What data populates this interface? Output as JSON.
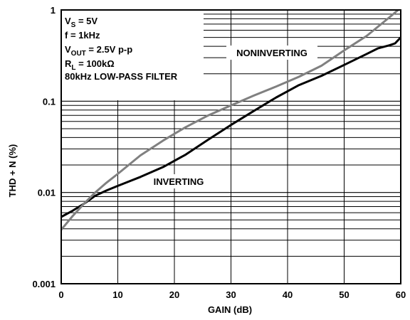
{
  "chart_data": {
    "type": "line",
    "xlabel": "GAIN (dB)",
    "ylabel": "THD + N (%)",
    "xlim": [
      0,
      60
    ],
    "ylim": [
      0.001,
      1
    ],
    "yscale": "log",
    "grid": true,
    "x_ticks": [
      "0",
      "10",
      "20",
      "30",
      "40",
      "50",
      "60"
    ],
    "y_ticks": [
      "0.001",
      "0.01",
      "0.1",
      "1"
    ],
    "conditions": {
      "vs_main": "V",
      "vs_sub": "S",
      "vs_rest": " = 5V",
      "freq": "f = 1kHz",
      "vout_main": "V",
      "vout_sub": "OUT",
      "vout_rest": " = 2.5V p-p",
      "rl_main": "R",
      "rl_sub": "L",
      "rl_rest": " = 100kΩ",
      "filter": "80kHz LOW-PASS FILTER"
    },
    "series": [
      {
        "name": "INVERTING",
        "color": "#000000",
        "x": [
          0,
          2,
          4,
          6,
          8,
          10,
          14,
          18,
          22,
          26,
          30,
          34,
          38,
          42,
          46,
          50,
          54,
          56,
          58,
          59,
          60
        ],
        "y": [
          0.0054,
          0.0063,
          0.0075,
          0.0092,
          0.0105,
          0.0118,
          0.0148,
          0.019,
          0.026,
          0.038,
          0.055,
          0.078,
          0.11,
          0.15,
          0.19,
          0.25,
          0.33,
          0.38,
          0.41,
          0.43,
          0.5
        ]
      },
      {
        "name": "NONINVERTING",
        "color": "#808080",
        "x": [
          0,
          2,
          4,
          6,
          8,
          10,
          14,
          18,
          22,
          26,
          30,
          34,
          38,
          42,
          46,
          50,
          54,
          58,
          60
        ],
        "y": [
          0.0039,
          0.0055,
          0.0075,
          0.01,
          0.0128,
          0.016,
          0.0255,
          0.037,
          0.052,
          0.07,
          0.09,
          0.115,
          0.145,
          0.185,
          0.245,
          0.36,
          0.52,
          0.83,
          1.06
        ]
      }
    ]
  }
}
